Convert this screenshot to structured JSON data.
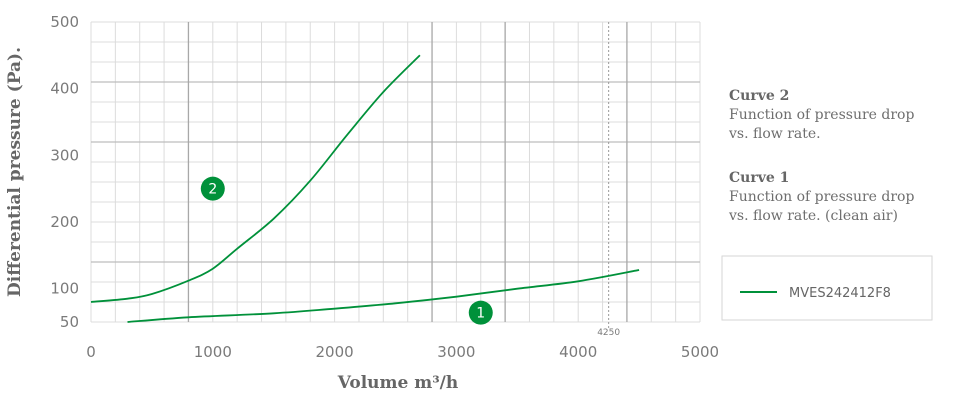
{
  "chart_data": {
    "type": "line",
    "xlabel": "Volume m³/h",
    "ylabel": "Differential pressure (Pa).",
    "xlim": [
      0,
      5000
    ],
    "ylim": [
      50,
      500
    ],
    "x_ticks": [
      "0",
      "1000",
      "2000",
      "3000",
      "4000",
      "5000"
    ],
    "y_ticks": [
      "500",
      "400",
      "300",
      "200",
      "100",
      "50"
    ],
    "grid": true,
    "color": "#00913a",
    "reference_lines": [
      {
        "label": "4250",
        "x": 4250
      },
      {
        "label": "",
        "x": 800
      },
      {
        "label": "",
        "x": 2800
      },
      {
        "label": "",
        "x": 3400
      },
      {
        "label": "",
        "x": 4400
      }
    ],
    "series": [
      {
        "marker": "2",
        "marker_at": {
          "x": 1000,
          "y": 250
        },
        "x": [
          0,
          300,
          500,
          800,
          1000,
          1200,
          1500,
          1800,
          2100,
          2400,
          2700
        ],
        "y": [
          80,
          85,
          92,
          112,
          130,
          160,
          205,
          262,
          330,
          395,
          450
        ]
      },
      {
        "marker": "1",
        "marker_at": {
          "x": 3200,
          "y": 64
        },
        "x": [
          300,
          800,
          1500,
          2000,
          2500,
          3000,
          3500,
          4000,
          4500
        ],
        "y": [
          50,
          57,
          63,
          70,
          78,
          88,
          100,
          111,
          128
        ]
      }
    ],
    "legend": {
      "placement": "right",
      "descriptions": [
        {
          "title": "Curve 2",
          "lines": [
            "Function of pressure drop",
            "vs. flow rate."
          ]
        },
        {
          "title": "Curve 1",
          "lines": [
            "Function of pressure drop",
            "vs. flow rate. (clean air)"
          ]
        }
      ],
      "entry": "MVES242412F8"
    }
  }
}
